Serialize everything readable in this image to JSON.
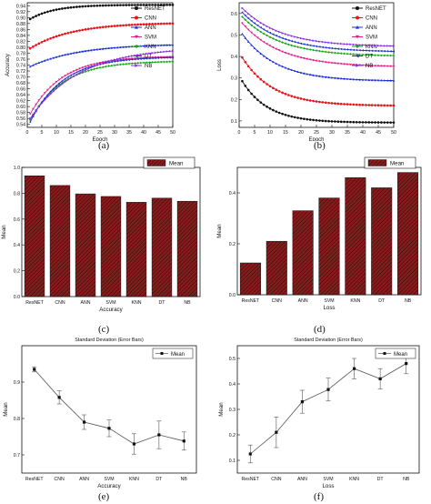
{
  "colors": {
    "ResNET": "#111111",
    "CNN": "#e8141a",
    "ANN": "#1a2fd8",
    "SVM": "#e0208a",
    "KNN": "#16a516",
    "DT": "#1e34c8",
    "NB": "#8a2be2",
    "bar_fill": "#8b1a1a",
    "bar_stripe": "#111111",
    "errbar_line": "#555555"
  },
  "panel_labels": [
    "(a)",
    "(b)",
    "(c)",
    "(d)",
    "(e)",
    "(f)"
  ],
  "chart_data": [
    {
      "type": "line",
      "xlabel": "Epoch",
      "ylabel": "Accuracy",
      "xlim": [
        0,
        50
      ],
      "ylim": [
        0.53,
        0.95
      ],
      "xticks": [
        0,
        5,
        10,
        15,
        20,
        25,
        30,
        35,
        40,
        45,
        50
      ],
      "yticks": [
        0.54,
        0.56,
        0.58,
        0.6,
        0.62,
        0.64,
        0.66,
        0.68,
        0.7,
        0.72,
        0.74,
        0.76,
        0.78,
        0.8,
        0.82,
        0.84,
        0.86,
        0.88,
        0.9,
        0.92,
        0.94
      ],
      "legend": "top-right",
      "grid": false,
      "series": [
        {
          "name": "ResNET",
          "marker": "circle",
          "start": 0.895,
          "end": 0.943,
          "k": 0.12
        },
        {
          "name": "CNN",
          "marker": "circle",
          "start": 0.796,
          "end": 0.883,
          "k": 0.07
        },
        {
          "name": "ANN",
          "marker": "triangle-up",
          "start": 0.735,
          "end": 0.812,
          "k": 0.06
        },
        {
          "name": "SVM",
          "marker": "triangle-down",
          "start": 0.575,
          "end": 0.77,
          "k": 0.09
        },
        {
          "name": "KNN",
          "marker": "diamond",
          "start": 0.555,
          "end": 0.754,
          "k": 0.09
        },
        {
          "name": "DT",
          "marker": "triangle-left",
          "start": 0.548,
          "end": 0.768,
          "k": 0.09
        },
        {
          "name": "NB",
          "marker": "triangle-right",
          "start": 0.56,
          "end": 0.8,
          "k": 0.06
        }
      ]
    },
    {
      "type": "line",
      "xlabel": "Epoch",
      "ylabel": "Loss",
      "xlim": [
        0,
        50
      ],
      "ylim": [
        0.07,
        0.65
      ],
      "xticks": [
        0,
        5,
        10,
        15,
        20,
        25,
        30,
        35,
        40,
        45,
        50
      ],
      "yticks": [
        0.1,
        0.2,
        0.3,
        0.4,
        0.5,
        0.6
      ],
      "legend": "top-right",
      "grid": false,
      "series": [
        {
          "name": "ResNET",
          "marker": "circle",
          "start": 0.285,
          "end": 0.092,
          "k": 0.12
        },
        {
          "name": "CNN",
          "marker": "circle",
          "start": 0.395,
          "end": 0.17,
          "k": 0.1
        },
        {
          "name": "ANN",
          "marker": "triangle-up",
          "start": 0.505,
          "end": 0.285,
          "k": 0.09
        },
        {
          "name": "SVM",
          "marker": "triangle-down",
          "start": 0.555,
          "end": 0.35,
          "k": 0.08
        },
        {
          "name": "KNN",
          "marker": "diamond",
          "start": 0.585,
          "end": 0.4,
          "k": 0.08
        },
        {
          "name": "DT",
          "marker": "triangle-left",
          "start": 0.605,
          "end": 0.42,
          "k": 0.08
        },
        {
          "name": "NB",
          "marker": "triangle-right",
          "start": 0.625,
          "end": 0.445,
          "k": 0.08
        }
      ]
    },
    {
      "type": "bar",
      "xlabel": "Accuracy",
      "ylabel": "Mean",
      "categories": [
        "ResNET",
        "CNN",
        "ANN",
        "SVM",
        "KNN",
        "DT",
        "NB"
      ],
      "values": [
        0.935,
        0.86,
        0.795,
        0.775,
        0.73,
        0.762,
        0.738
      ],
      "ylim": [
        0,
        1.0
      ],
      "yticks": [
        0.0,
        0.2,
        0.4,
        0.6,
        0.8,
        1.0
      ],
      "legend": "top-right",
      "legend_entries": [
        "Mean"
      ]
    },
    {
      "type": "bar",
      "xlabel": "Loss",
      "ylabel": "Mean",
      "categories": [
        "ResNET",
        "CNN",
        "ANN",
        "SVM",
        "KNN",
        "DT",
        "NB"
      ],
      "values": [
        0.125,
        0.21,
        0.33,
        0.38,
        0.46,
        0.42,
        0.48
      ],
      "ylim": [
        0,
        0.5
      ],
      "yticks": [
        0.0,
        0.2,
        0.4
      ],
      "legend": "top-right",
      "legend_entries": [
        "Mean"
      ]
    },
    {
      "type": "line",
      "title": "Standard Deviation (Error Bars)",
      "xlabel": "Accuracy",
      "ylabel": "Mean",
      "categories": [
        "ResNET",
        "CNN",
        "ANN",
        "SVM",
        "KNN",
        "DT",
        "NB"
      ],
      "values": [
        0.935,
        0.858,
        0.79,
        0.773,
        0.73,
        0.755,
        0.738
      ],
      "errors": [
        0.007,
        0.018,
        0.02,
        0.023,
        0.028,
        0.038,
        0.025
      ],
      "ylim": [
        0.65,
        1.0
      ],
      "yticks": [
        0.7,
        0.8,
        0.9
      ],
      "legend": "top-right",
      "legend_entries": [
        "Mean"
      ]
    },
    {
      "type": "line",
      "title": "Standard Deviation (Error Bars)",
      "xlabel": "Loss",
      "ylabel": "Mean",
      "categories": [
        "ResNET",
        "CNN",
        "ANN",
        "SVM",
        "KNN",
        "DT",
        "NB"
      ],
      "values": [
        0.125,
        0.21,
        0.33,
        0.378,
        0.46,
        0.42,
        0.48
      ],
      "errors": [
        0.035,
        0.06,
        0.045,
        0.045,
        0.04,
        0.04,
        0.04
      ],
      "ylim": [
        0.05,
        0.55
      ],
      "yticks": [
        0.1,
        0.2,
        0.3,
        0.4,
        0.5
      ],
      "legend": "top-right",
      "legend_entries": [
        "Mean"
      ]
    }
  ]
}
